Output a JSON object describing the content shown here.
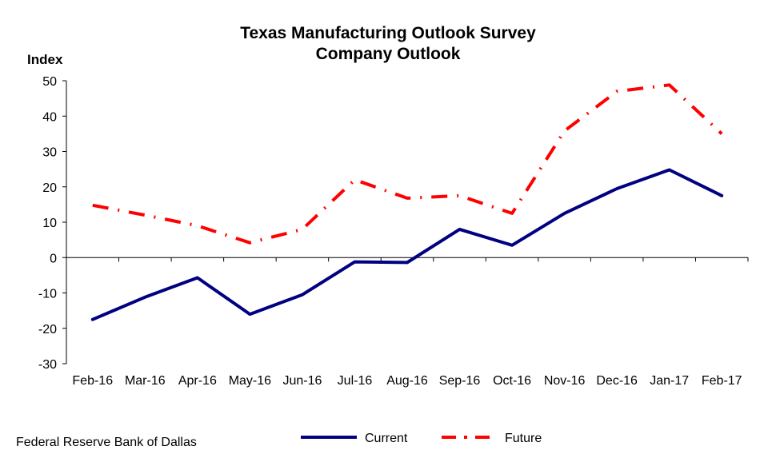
{
  "chart_data": {
    "type": "line",
    "title": "Texas Manufacturing Outlook Survey",
    "subtitle": "Company Outlook",
    "ylabel": "Index",
    "xlabel": "",
    "ylim": [
      -30,
      50
    ],
    "yticks": [
      -30,
      -20,
      -10,
      0,
      10,
      20,
      30,
      40,
      50
    ],
    "categories": [
      "Feb-16",
      "Mar-16",
      "Apr-16",
      "May-16",
      "Jun-16",
      "Jul-16",
      "Aug-16",
      "Sep-16",
      "Oct-16",
      "Nov-16",
      "Dec-16",
      "Jan-17",
      "Feb-17"
    ],
    "series": [
      {
        "name": "Current",
        "color": "#000080",
        "style": "solid",
        "values": [
          -17.5,
          -11.2,
          -5.7,
          -16.0,
          -10.5,
          -1.2,
          -1.4,
          8.0,
          3.5,
          12.5,
          19.5,
          24.8,
          17.5
        ]
      },
      {
        "name": "Future",
        "color": "#ff0000",
        "style": "dash-dot",
        "values": [
          14.8,
          12.0,
          9.0,
          4.2,
          8.0,
          22.0,
          16.8,
          17.5,
          12.5,
          35.8,
          47.0,
          48.8,
          35.0
        ]
      }
    ],
    "legend_position": "bottom",
    "grid": false
  },
  "source": "Federal Reserve Bank of Dallas"
}
